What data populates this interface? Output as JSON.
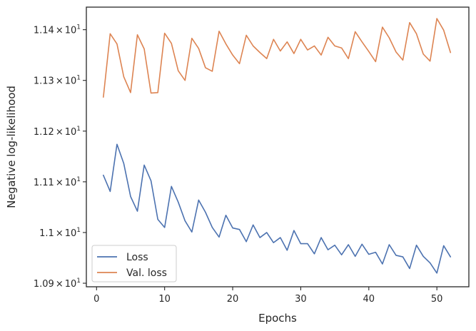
{
  "chart_data": {
    "type": "line",
    "xlabel": "Epochs",
    "ylabel": "Negative log-likelihood",
    "xlim": [
      -1.5,
      54.7
    ],
    "ylim": [
      10.893,
      11.4445
    ],
    "x_ticks": [
      0,
      10,
      20,
      30,
      40,
      50
    ],
    "x_tick_labels": [
      "0",
      "10",
      "20",
      "30",
      "40",
      "50"
    ],
    "y_ticks": [
      10.9,
      11.0,
      11.1,
      11.2,
      11.3,
      11.4
    ],
    "y_tick_labels": [
      {
        "mantissa": "1.09",
        "times": "×",
        "base": "10",
        "exp": "1"
      },
      {
        "mantissa": "1.1",
        "times": "×",
        "base": "10",
        "exp": "1"
      },
      {
        "mantissa": "1.11",
        "times": "×",
        "base": "10",
        "exp": "1"
      },
      {
        "mantissa": "1.12",
        "times": "×",
        "base": "10",
        "exp": "1"
      },
      {
        "mantissa": "1.13",
        "times": "×",
        "base": "10",
        "exp": "1"
      },
      {
        "mantissa": "1.14",
        "times": "×",
        "base": "10",
        "exp": "1"
      }
    ],
    "grid": false,
    "legend_position": "lower-left",
    "x": [
      1,
      2,
      3,
      4,
      5,
      6,
      7,
      8,
      9,
      10,
      11,
      12,
      13,
      14,
      15,
      16,
      17,
      18,
      19,
      20,
      21,
      22,
      23,
      24,
      25,
      26,
      27,
      28,
      29,
      30,
      31,
      32,
      33,
      34,
      35,
      36,
      37,
      38,
      39,
      40,
      41,
      42,
      43,
      44,
      45,
      46,
      47,
      48,
      49,
      50,
      51,
      52
    ],
    "series": [
      {
        "name": "Loss",
        "color": "#4c72b0",
        "values": [
          11.113,
          11.081,
          11.174,
          11.136,
          11.071,
          11.042,
          11.133,
          11.102,
          11.026,
          11.01,
          11.091,
          11.06,
          11.023,
          11.001,
          11.064,
          11.04,
          11.01,
          10.991,
          11.034,
          11.009,
          11.006,
          10.982,
          11.015,
          10.99,
          11.0,
          10.98,
          10.99,
          10.965,
          11.004,
          10.978,
          10.978,
          10.958,
          10.99,
          10.966,
          10.975,
          10.956,
          10.976,
          10.953,
          10.977,
          10.957,
          10.961,
          10.938,
          10.976,
          10.955,
          10.952,
          10.929,
          10.975,
          10.953,
          10.94,
          10.92,
          10.974,
          10.952
        ]
      },
      {
        "name": "Val. loss",
        "color": "#dd8452",
        "values": [
          11.267,
          11.392,
          11.372,
          11.307,
          11.276,
          11.39,
          11.362,
          11.275,
          11.276,
          11.393,
          11.373,
          11.319,
          11.3,
          11.383,
          11.363,
          11.325,
          11.318,
          11.397,
          11.372,
          11.35,
          11.333,
          11.389,
          11.368,
          11.355,
          11.343,
          11.381,
          11.358,
          11.376,
          11.353,
          11.381,
          11.36,
          11.368,
          11.35,
          11.385,
          11.368,
          11.364,
          11.343,
          11.396,
          11.376,
          11.357,
          11.337,
          11.405,
          11.384,
          11.356,
          11.34,
          11.414,
          11.392,
          11.352,
          11.338,
          11.422,
          11.399,
          11.355
        ]
      }
    ]
  }
}
